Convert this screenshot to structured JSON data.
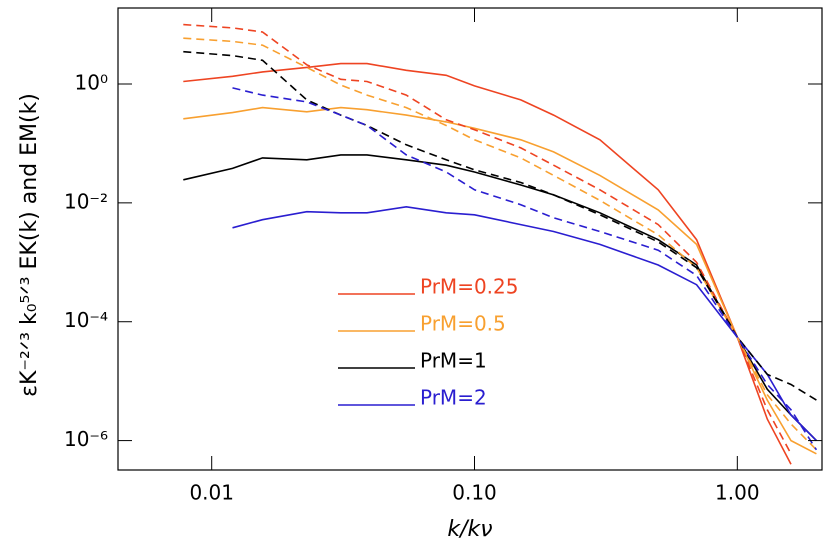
{
  "chart_data": {
    "type": "line",
    "xlabel": "k/kν",
    "ylabel": "εK⁻²ᐟ³ k₀⁵ᐟ³ EK(k)    and    EM(k)",
    "x": [
      0.0078,
      0.012,
      0.0156,
      0.023,
      0.031,
      0.039,
      0.055,
      0.078,
      0.1,
      0.15,
      0.2,
      0.3,
      0.5,
      0.7,
      1.0,
      1.3,
      1.6,
      2.0
    ],
    "series": [
      {
        "name": "PrM=0.25",
        "color": "#ee4422",
        "dash": false,
        "values": [
          1.1,
          1.35,
          1.6,
          1.9,
          2.2,
          2.2,
          1.7,
          1.4,
          0.93,
          0.54,
          0.3,
          0.115,
          0.0166,
          0.0024,
          5.5e-05,
          2.3e-06,
          4e-07,
          null
        ]
      },
      {
        "name": "PrM=0.5",
        "color": "#f8a030",
        "dash": false,
        "values": [
          0.26,
          0.33,
          0.4,
          0.34,
          0.4,
          0.37,
          0.3,
          0.23,
          0.18,
          0.115,
          0.072,
          0.029,
          0.0076,
          0.002,
          5.5e-05,
          4.8e-06,
          1e-06,
          6e-07
        ]
      },
      {
        "name": "PrM=1",
        "color": "#000000",
        "dash": false,
        "values": [
          0.0244,
          0.038,
          0.057,
          0.053,
          0.064,
          0.064,
          0.053,
          0.043,
          0.033,
          0.02,
          0.0136,
          0.0068,
          0.0024,
          0.0009,
          5.5e-05,
          7.3e-06,
          2.7e-06,
          1e-06
        ]
      },
      {
        "name": "PrM=2",
        "color": "#2a1ed0",
        "dash": false,
        "values": [
          null,
          0.0038,
          0.0052,
          0.0071,
          0.0068,
          0.0068,
          0.0086,
          0.0068,
          0.0063,
          0.0043,
          0.0033,
          0.002,
          0.0009,
          0.00042,
          5.5e-05,
          1.3e-05,
          2.7e-06,
          1e-06
        ]
      },
      {
        "color": "#ee4422",
        "dash": true,
        "values": [
          10,
          8.8,
          7.5,
          2.1,
          1.2,
          1.1,
          0.65,
          0.25,
          0.17,
          0.084,
          0.043,
          0.0166,
          0.0043,
          0.001,
          5.5e-05,
          3.3e-06,
          6e-07,
          null
        ]
      },
      {
        "color": "#f8a030",
        "dash": true,
        "values": [
          5.9,
          5.2,
          4.5,
          1.9,
          0.96,
          0.65,
          0.4,
          0.2,
          0.115,
          0.057,
          0.029,
          0.011,
          0.0029,
          0.00081,
          5.5e-05,
          5.9e-06,
          1.9e-06,
          7e-07
        ]
      },
      {
        "color": "#000000",
        "dash": true,
        "values": [
          3.5,
          3.0,
          2.5,
          0.54,
          0.3,
          0.2,
          0.095,
          0.053,
          0.036,
          0.022,
          0.0136,
          0.0063,
          0.0022,
          0.00081,
          5.5e-05,
          1.3e-05,
          8.8e-06,
          4.8e-06
        ]
      },
      {
        "color": "#2a1ed0",
        "dash": true,
        "values": [
          null,
          0.86,
          0.65,
          0.5,
          0.3,
          0.2,
          0.064,
          0.033,
          0.0166,
          0.0093,
          0.0056,
          0.0033,
          0.0016,
          0.0006,
          5.5e-05,
          8.8e-06,
          3.3e-06,
          7e-07
        ]
      }
    ],
    "xscale": "log",
    "yscale": "log",
    "xlim": [
      0.0044,
      2.1
    ],
    "ylim": [
      3.2e-07,
      19
    ],
    "xticks": [
      0.01,
      {
        "value": 0.1,
        "label": "0.10"
      },
      {
        "value": 1,
        "label": "1.00"
      }
    ],
    "yticks": [
      {
        "value": 1e-06,
        "label": "10⁻⁶"
      },
      {
        "value": 0.0001,
        "label": "10⁻⁴"
      },
      {
        "value": 0.01,
        "label": "10⁻²"
      },
      {
        "value": 1,
        "label": "10⁰"
      }
    ]
  }
}
